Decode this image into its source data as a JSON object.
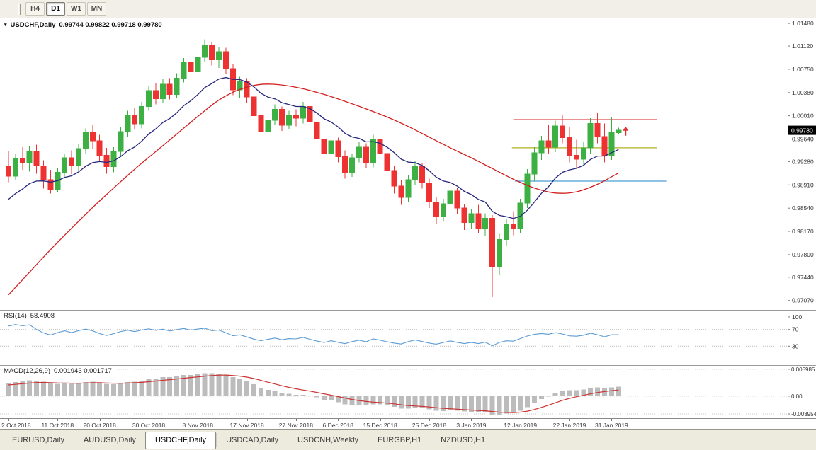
{
  "toolbar": {
    "timeframes": [
      {
        "label": "H4",
        "active": false
      },
      {
        "label": "D1",
        "active": true
      },
      {
        "label": "W1",
        "active": false
      },
      {
        "label": "MN",
        "active": false
      }
    ]
  },
  "chart": {
    "dropdown_icon": "▾",
    "symbol_title": "USDCHF,Daily",
    "ohlc_text": "0.99744 0.99822 0.99718 0.99780",
    "price_badge": "0.99780"
  },
  "rsi_panel": {
    "label": "RSI(14)",
    "value": "58.4908"
  },
  "macd_panel": {
    "label": "MACD(12,26,9)",
    "value": "0.001943 0.001717"
  },
  "tabs": [
    {
      "label": "EURUSD,Daily",
      "active": false
    },
    {
      "label": "AUDUSD,Daily",
      "active": false
    },
    {
      "label": "USDCHF,Daily",
      "active": true
    },
    {
      "label": "USDCAD,Daily",
      "active": false
    },
    {
      "label": "USDCNH,Weekly",
      "active": false
    },
    {
      "label": "EURGBP,H1",
      "active": false
    },
    {
      "label": "NZDUSD,H1",
      "active": false
    }
  ],
  "chart_data": {
    "type": "candlestick",
    "title": "USDCHF,Daily",
    "y_axis": {
      "ticks": [
        "1.01480",
        "1.01120",
        "1.00750",
        "1.00380",
        "1.00010",
        "0.99640",
        "0.99280",
        "0.98910",
        "0.98540",
        "0.98170",
        "0.97800",
        "0.97440",
        "0.97070"
      ],
      "min": 0.9692,
      "max": 1.0156
    },
    "x_ticks": [
      {
        "label": "2 Oct 2018",
        "bar": 0
      },
      {
        "label": "11 Oct 2018",
        "bar": 7
      },
      {
        "label": "20 Oct 2018",
        "bar": 13
      },
      {
        "label": "30 Oct 2018",
        "bar": 20
      },
      {
        "label": "8 Nov 2018",
        "bar": 27
      },
      {
        "label": "17 Nov 2018",
        "bar": 34
      },
      {
        "label": "27 Nov 2018",
        "bar": 41
      },
      {
        "label": "6 Dec 2018",
        "bar": 47
      },
      {
        "label": "15 Dec 2018",
        "bar": 53
      },
      {
        "label": "25 Dec 2018",
        "bar": 60
      },
      {
        "label": "3 Jan 2019",
        "bar": 66
      },
      {
        "label": "12 Jan 2019",
        "bar": 73
      },
      {
        "label": "22 Jan 2019",
        "bar": 80
      },
      {
        "label": "31 Jan 2019",
        "bar": 86
      }
    ],
    "candle_colors": {
      "up": "#3cb043",
      "down": "#ee3232"
    },
    "candles": [
      [
        0.992,
        0.9945,
        0.9895,
        0.9905
      ],
      [
        0.9905,
        0.994,
        0.9899,
        0.9933
      ],
      [
        0.9933,
        0.9951,
        0.9915,
        0.9927
      ],
      [
        0.9927,
        0.9952,
        0.9912,
        0.9945
      ],
      [
        0.9945,
        0.9955,
        0.9909,
        0.9921
      ],
      [
        0.9921,
        0.993,
        0.9885,
        0.9899
      ],
      [
        0.9899,
        0.9915,
        0.9877,
        0.9884
      ],
      [
        0.9884,
        0.9918,
        0.9879,
        0.9911
      ],
      [
        0.9911,
        0.9941,
        0.9904,
        0.9934
      ],
      [
        0.9934,
        0.9946,
        0.9908,
        0.9921
      ],
      [
        0.9921,
        0.9956,
        0.9914,
        0.9949
      ],
      [
        0.9949,
        0.9981,
        0.994,
        0.9974
      ],
      [
        0.9974,
        0.9986,
        0.9949,
        0.9961
      ],
      [
        0.9961,
        0.9971,
        0.9929,
        0.9938
      ],
      [
        0.9938,
        0.995,
        0.9909,
        0.992
      ],
      [
        0.992,
        0.9951,
        0.9911,
        0.9944
      ],
      [
        0.9944,
        0.9983,
        0.9937,
        0.9976
      ],
      [
        0.9976,
        1.0009,
        0.9967,
        1.0001
      ],
      [
        1.0001,
        1.0013,
        0.9979,
        0.9988
      ],
      [
        0.9988,
        1.0023,
        0.9981,
        1.0016
      ],
      [
        1.0016,
        1.0049,
        1.0009,
        1.0041
      ],
      [
        1.0041,
        1.0053,
        1.0019,
        1.0028
      ],
      [
        1.0028,
        1.0059,
        1.0021,
        1.0051
      ],
      [
        1.0051,
        1.0061,
        1.0027,
        1.0035
      ],
      [
        1.0035,
        1.0069,
        1.0029,
        1.0061
      ],
      [
        1.0061,
        1.0093,
        1.0054,
        1.0086
      ],
      [
        1.0086,
        1.0096,
        1.0061,
        1.0071
      ],
      [
        1.0071,
        1.0101,
        1.0064,
        1.0094
      ],
      [
        1.0094,
        1.0123,
        1.0087,
        1.0113
      ],
      [
        1.0113,
        1.0119,
        1.0081,
        1.009
      ],
      [
        1.009,
        1.0111,
        1.0077,
        1.0103
      ],
      [
        1.0103,
        1.0109,
        1.0067,
        1.0076
      ],
      [
        1.0076,
        1.0083,
        1.0034,
        1.0042
      ],
      [
        1.0042,
        1.0063,
        1.0029,
        1.0056
      ],
      [
        1.0056,
        1.0061,
        1.0021,
        1.0031
      ],
      [
        1.0031,
        1.0041,
        0.9991,
        1.0001
      ],
      [
        1.0001,
        1.0011,
        0.9964,
        0.9976
      ],
      [
        0.9976,
        1.0001,
        0.9967,
        0.9994
      ],
      [
        0.9994,
        1.0019,
        0.9987,
        1.0011
      ],
      [
        1.0011,
        1.0016,
        0.9977,
        0.9986
      ],
      [
        0.9986,
        1.0009,
        0.9979,
        1.0001
      ],
      [
        1.0001,
        1.0011,
        0.9984,
        0.9997
      ],
      [
        0.9997,
        1.0023,
        0.9989,
        1.0016
      ],
      [
        1.0016,
        1.0021,
        0.9981,
        0.9991
      ],
      [
        0.9991,
        0.9999,
        0.9954,
        0.9964
      ],
      [
        0.9964,
        0.9973,
        0.9929,
        0.9941
      ],
      [
        0.9941,
        0.9969,
        0.9934,
        0.9961
      ],
      [
        0.9961,
        0.9966,
        0.9927,
        0.9936
      ],
      [
        0.9936,
        0.9946,
        0.9901,
        0.9911
      ],
      [
        0.9911,
        0.9941,
        0.9904,
        0.9934
      ],
      [
        0.9934,
        0.9959,
        0.9927,
        0.9951
      ],
      [
        0.9951,
        0.9957,
        0.9917,
        0.9926
      ],
      [
        0.9926,
        0.9971,
        0.9919,
        0.9963
      ],
      [
        0.9963,
        0.9969,
        0.9931,
        0.9941
      ],
      [
        0.9941,
        0.9949,
        0.9904,
        0.9914
      ],
      [
        0.9914,
        0.9921,
        0.9877,
        0.9889
      ],
      [
        0.9889,
        0.9899,
        0.9859,
        0.9871
      ],
      [
        0.9871,
        0.9906,
        0.9864,
        0.9899
      ],
      [
        0.9899,
        0.9929,
        0.9891,
        0.9921
      ],
      [
        0.9921,
        0.9926,
        0.9885,
        0.9894
      ],
      [
        0.9894,
        0.9901,
        0.9854,
        0.9864
      ],
      [
        0.9864,
        0.9871,
        0.9829,
        0.9841
      ],
      [
        0.9841,
        0.9869,
        0.9834,
        0.9861
      ],
      [
        0.9861,
        0.9889,
        0.9854,
        0.9881
      ],
      [
        0.9881,
        0.9886,
        0.9844,
        0.9854
      ],
      [
        0.9854,
        0.9861,
        0.9819,
        0.9831
      ],
      [
        0.9831,
        0.9853,
        0.9821,
        0.9845
      ],
      [
        0.9845,
        0.9859,
        0.9814,
        0.9822
      ],
      [
        0.9822,
        0.9846,
        0.9809,
        0.9838
      ],
      [
        0.9838,
        0.9843,
        0.9712,
        0.976
      ],
      [
        0.976,
        0.9813,
        0.9747,
        0.9804
      ],
      [
        0.9804,
        0.9836,
        0.9794,
        0.9828
      ],
      [
        0.9828,
        0.9849,
        0.9811,
        0.9821
      ],
      [
        0.9821,
        0.9869,
        0.9814,
        0.9862
      ],
      [
        0.9862,
        0.9916,
        0.9854,
        0.9908
      ],
      [
        0.9908,
        0.9951,
        0.9897,
        0.9942
      ],
      [
        0.9942,
        0.9969,
        0.9931,
        0.9961
      ],
      [
        0.9961,
        0.9987,
        0.9941,
        0.9951
      ],
      [
        0.9951,
        0.9993,
        0.9943,
        0.9985
      ],
      [
        0.9985,
        1.0002,
        0.9957,
        0.9966
      ],
      [
        0.9966,
        0.9983,
        0.9927,
        0.9938
      ],
      [
        0.9938,
        0.9963,
        0.9917,
        0.9932
      ],
      [
        0.9932,
        0.9959,
        0.9923,
        0.995
      ],
      [
        0.995,
        0.9997,
        0.994,
        0.9989
      ],
      [
        0.9989,
        1.0005,
        0.9957,
        0.9968
      ],
      [
        0.9968,
        0.9989,
        0.9927,
        0.9938
      ],
      [
        0.9938,
        0.9999,
        0.9931,
        0.9974
      ],
      [
        0.99744,
        0.99822,
        0.99718,
        0.9978
      ]
    ],
    "prehistory_closes": [
      0.976,
      0.9774,
      0.9768,
      0.9784,
      0.9779,
      0.9795,
      0.979,
      0.9806,
      0.98,
      0.9816,
      0.9811,
      0.9826,
      0.982,
      0.9836,
      0.9831,
      0.9846,
      0.9841,
      0.9856,
      0.9851,
      0.9866,
      0.9861,
      0.9876,
      0.9871,
      0.9886,
      0.9881,
      0.9896
    ],
    "overlays": {
      "ma_slow": {
        "name": "slow-moving-average",
        "color": "#d21f1f",
        "points": [
          [
            0,
            0.9716
          ],
          [
            3,
            0.9752
          ],
          [
            6,
            0.9788
          ],
          [
            9,
            0.9822
          ],
          [
            12,
            0.9855
          ],
          [
            15,
            0.9886
          ],
          [
            18,
            0.9916
          ],
          [
            21,
            0.9944
          ],
          [
            24,
            0.9972
          ],
          [
            27,
            1.0
          ],
          [
            30,
            1.0026
          ],
          [
            33,
            1.0043
          ],
          [
            36,
            1.0051
          ],
          [
            39,
            1.005
          ],
          [
            42,
            1.0044
          ],
          [
            45,
            1.0035
          ],
          [
            48,
            1.0024
          ],
          [
            51,
            1.0012
          ],
          [
            54,
            0.9999
          ],
          [
            57,
            0.9984
          ],
          [
            60,
            0.9967
          ],
          [
            63,
            0.995
          ],
          [
            66,
            0.9934
          ],
          [
            69,
            0.9917
          ],
          [
            72,
            0.99
          ],
          [
            75,
            0.9886
          ],
          [
            78,
            0.9878
          ],
          [
            81,
            0.988
          ],
          [
            84,
            0.9892
          ],
          [
            86,
            0.9904
          ],
          [
            87,
            0.991
          ]
        ]
      },
      "ma_fast": {
        "name": "fast-moving-average",
        "color": "#26267d",
        "period": 13
      }
    },
    "hlines": [
      {
        "name": "resistance-line",
        "price": 0.9995,
        "color": "#e14f4f",
        "from_bar": 72,
        "to_bar": 92.5
      },
      {
        "name": "pivot-line",
        "price": 0.995,
        "color": "#b0b020",
        "from_bar": 71.8,
        "to_bar": 92.5
      },
      {
        "name": "support-line",
        "price": 0.9897,
        "color": "#4b9fd6",
        "from_bar": 72.2,
        "to_bar": 93.8
      }
    ],
    "marker": {
      "bar": 87.6,
      "price": 0.9975,
      "color": "#e03030",
      "shape": "arrow-up"
    },
    "rsi": {
      "period": 14,
      "color": "#5a9bd4",
      "levels": [
        70,
        30
      ],
      "axis_labels": [
        "100",
        "70",
        "30"
      ],
      "scale_min": -15,
      "scale_max": 115
    },
    "macd": {
      "fast": 12,
      "slow": 26,
      "signal": 9,
      "hist_color": "#bcbcbc",
      "line_color": "#cc3333",
      "axis_labels": [
        "0.005985",
        "0.00",
        "-0.003954"
      ],
      "scale_min": -0.0049,
      "scale_max": 0.00675
    }
  }
}
